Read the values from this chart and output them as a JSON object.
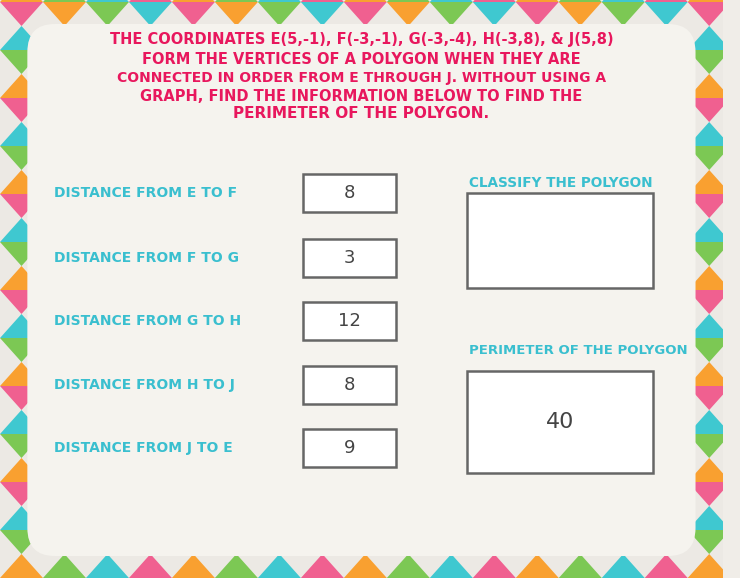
{
  "title_line1": "THE COORDINATES E(5,-1), F(-3,-1), G(-3,-4), H(-3,8), & J(5,8)",
  "title_line2": "FORM THE VERTICES OF A POLYGON WHEN THEY ARE",
  "title_line3": "CONNECTED IN ORDER FROM E THROUGH J. WITHOUT USING A",
  "title_line4": "GRAPH, FIND THE INFORMATION BELOW TO FIND THE",
  "title_line5": "PERIMETER OF THE POLYGON.",
  "title_color": "#e8175d",
  "label_color": "#3abfcf",
  "value_color": "#444444",
  "card_bg": "#f5f3ee",
  "labels": [
    "DISTANCE FROM E TO F",
    "DISTANCE FROM F TO G",
    "DISTANCE FROM G TO H",
    "DISTANCE FROM H TO J",
    "DISTANCE FROM J TO E"
  ],
  "values": [
    "8",
    "3",
    "12",
    "8",
    "9"
  ],
  "right_label1": "CLASSIFY THE POLYGON",
  "right_label2": "PERIMETER OF THE POLYGON",
  "perimeter_value": "40",
  "chevron_row1": [
    "#f5a0b5",
    "#f5a0b5",
    "#f9c94e",
    "#78d48a",
    "#4dc8d8",
    "#f5a0b5",
    "#f9c94e",
    "#78d48a",
    "#4dc8d8",
    "#f5a0b5",
    "#f9c94e",
    "#78d48a",
    "#4dc8d8",
    "#f5a0b5",
    "#f9c94e",
    "#78d48a"
  ],
  "chevron_row2": [
    "#f06090",
    "#f9c94e",
    "#78d48a",
    "#4dc8d8",
    "#f06090",
    "#f9c94e",
    "#78d48a",
    "#4dc8d8",
    "#f06090",
    "#f9c94e",
    "#78d48a",
    "#4dc8d8",
    "#f06090",
    "#f9c94e",
    "#78d48a",
    "#4dc8d8"
  ]
}
